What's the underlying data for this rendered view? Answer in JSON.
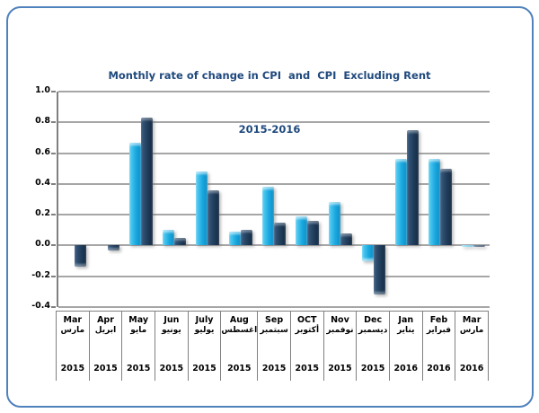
{
  "title": {
    "line1": "Monthly rate of change in CPI  and  CPI  Excluding Rent",
    "line2": "2015-2016"
  },
  "colors": {
    "frame_border": "#4F81BD",
    "title_text": "#1F497D",
    "gridline": "#A6A6A6",
    "axis_line": "#808080",
    "cpi_bar": "#1AA9E1",
    "cpi_excluding_rent_bar": "#22405F"
  },
  "chart_data": {
    "type": "bar",
    "title": "Monthly rate of change in CPI and CPI Excluding Rent 2015-2016",
    "categories": [
      {
        "en": "Mar",
        "ar": "مارس",
        "year": "2015"
      },
      {
        "en": "Apr",
        "ar": "ابريل",
        "year": "2015"
      },
      {
        "en": "May",
        "ar": "مايو",
        "year": "2015"
      },
      {
        "en": "Jun",
        "ar": "يونيو",
        "year": "2015"
      },
      {
        "en": "July",
        "ar": "يوليو",
        "year": "2015"
      },
      {
        "en": "Aug",
        "ar": "اغسطس",
        "year": "2015"
      },
      {
        "en": "Sep",
        "ar": "سبتمبر",
        "year": "2015"
      },
      {
        "en": "OCT",
        "ar": "أكتوبر",
        "year": "2015"
      },
      {
        "en": "Nov",
        "ar": "نوفمبر",
        "year": "2015"
      },
      {
        "en": "Dec",
        "ar": "ديسمبر",
        "year": "2015"
      },
      {
        "en": "Jan",
        "ar": "يناير",
        "year": "2016"
      },
      {
        "en": "Feb",
        "ar": "فبراير",
        "year": "2016"
      },
      {
        "en": "Mar",
        "ar": "مارس",
        "year": "2016"
      }
    ],
    "series": [
      {
        "name": "CPI",
        "color": "#1AA9E1",
        "values": [
          0.0,
          0.0,
          0.67,
          0.1,
          0.48,
          0.09,
          0.38,
          0.19,
          0.28,
          -0.1,
          0.56,
          0.56,
          -0.01
        ]
      },
      {
        "name": "CPI Excluding Rent",
        "color": "#22405F",
        "values": [
          -0.14,
          -0.03,
          0.83,
          0.05,
          0.36,
          0.1,
          0.15,
          0.16,
          0.08,
          -0.32,
          0.75,
          0.5,
          -0.01
        ]
      }
    ],
    "ylim": [
      -0.4,
      1.0
    ],
    "ytick_step": 0.2,
    "ytick_labels": [
      "1.0",
      "0.8",
      "0.6",
      "0.4",
      "0.2",
      "0.0",
      "-0.2",
      "-0.4"
    ],
    "xlabel": "",
    "ylabel": "",
    "grid": true,
    "legend": "none"
  }
}
